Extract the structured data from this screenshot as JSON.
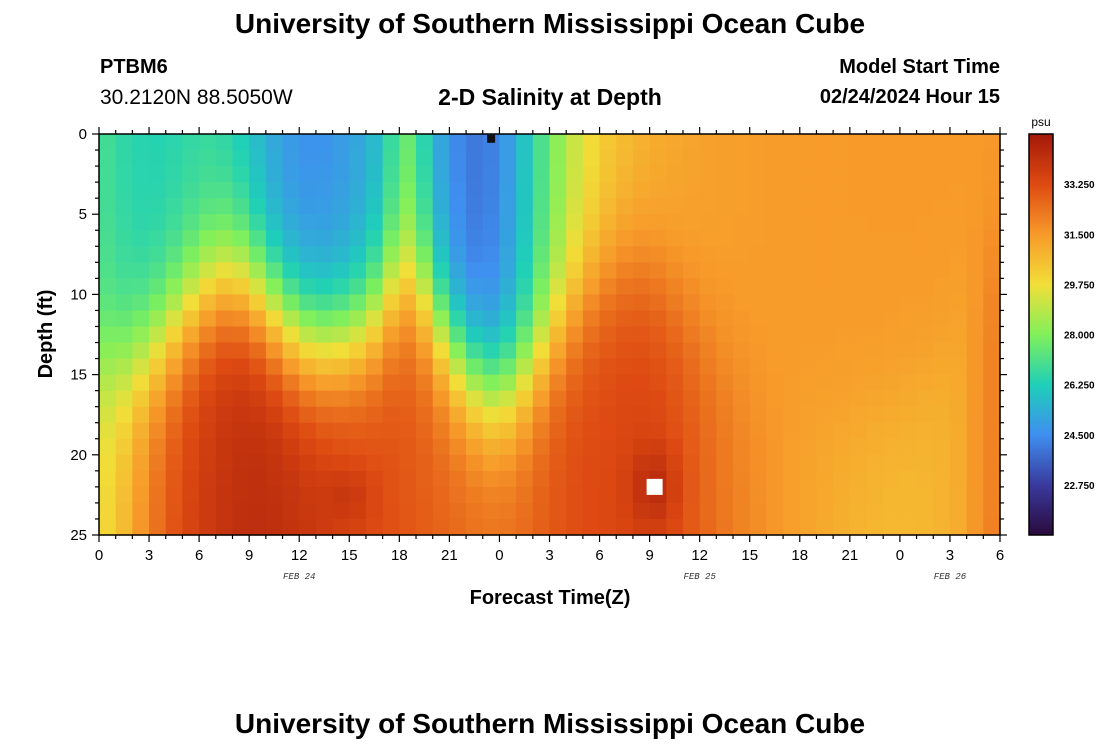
{
  "header": {
    "title_top": "University of Southern Mississippi Ocean Cube",
    "station": "PTBM6",
    "coords": "30.2120N  88.5050W",
    "subtitle": "2-D Salinity at Depth",
    "model_start_label": "Model Start Time",
    "model_start_value": "02/24/2024 Hour 15",
    "title_bottom": "University of Southern Mississippi Ocean Cube"
  },
  "colors": {
    "colormap": [
      "#2a0a3c",
      "#3a3a9e",
      "#3f8ff0",
      "#1ed0b8",
      "#82f05a",
      "#f2de38",
      "#f79a2a",
      "#de4a12",
      "#a3190a"
    ],
    "marker_white": "#ffffff",
    "marker_black": "#111111"
  },
  "chart_data": {
    "type": "heatmap",
    "title": "2-D Salinity at Depth",
    "xlabel": "Forecast Time(Z)",
    "ylabel": "Depth (ft)",
    "x_hours": [
      0,
      54
    ],
    "ylim": [
      0,
      25
    ],
    "x_ticks": [
      "0",
      "3",
      "6",
      "9",
      "12",
      "15",
      "18",
      "21",
      "0",
      "3",
      "6",
      "9",
      "12",
      "15",
      "18",
      "21",
      "0",
      "3",
      "6"
    ],
    "y_ticks": [
      "0",
      "5",
      "10",
      "15",
      "20",
      "25"
    ],
    "date_labels": [
      {
        "label": "FEB 24",
        "hour": 12
      },
      {
        "label": "FEB 25",
        "hour": 36
      },
      {
        "label": "FEB 26",
        "hour": 51
      }
    ],
    "colorbar": {
      "unit": "psu",
      "range": [
        21,
        35
      ],
      "ticks": [
        "22.750",
        "24.500",
        "26.250",
        "28.000",
        "29.750",
        "31.500",
        "33.250"
      ]
    },
    "markers": [
      {
        "color": "black",
        "hour": 23.5,
        "depth": 0.3
      },
      {
        "color": "white",
        "hour": 33.3,
        "depth": 22.0
      }
    ],
    "cols_per_hour": 1,
    "depth_rows": 25
  }
}
